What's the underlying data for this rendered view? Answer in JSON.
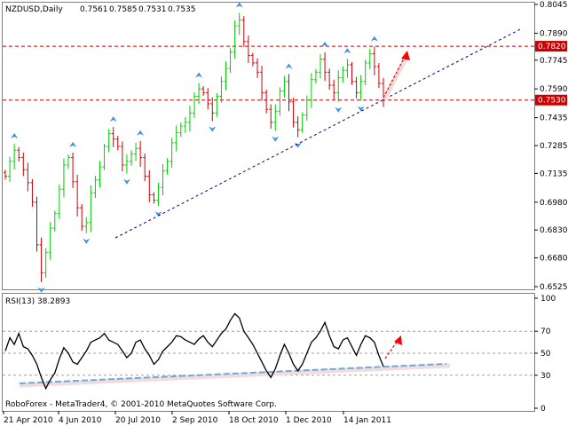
{
  "chart_data": [
    {
      "type": "candlestick",
      "symbol": "NZDUSD,Daily",
      "ohlc": [
        "0.7561",
        "0.7585",
        "0.7531",
        "0.7535"
      ],
      "y_ticks": [
        "0.8045",
        "0.7890",
        "0.7745",
        "0.7590",
        "0.7435",
        "0.7285",
        "0.7135",
        "0.6980",
        "0.6830",
        "0.6680",
        "0.6525"
      ],
      "ylim": [
        0.6525,
        0.8045
      ],
      "resistance_label": "0.7820",
      "resistance_value": 0.782,
      "support_label": "0.7530",
      "support_value": 0.753,
      "colors": {
        "bull": "#00cc00",
        "bear": "#cc0000",
        "level": "#cc0000",
        "trend": "#00008b",
        "fractal": "#3d8fe0",
        "forecast": "#ff0000"
      },
      "close_path": [
        0.712,
        0.72,
        0.726,
        0.722,
        0.7155,
        0.7085,
        0.698,
        0.675,
        0.66,
        0.671,
        0.684,
        0.692,
        0.705,
        0.718,
        0.722,
        0.709,
        0.695,
        0.685,
        0.687,
        0.703,
        0.71,
        0.717,
        0.728,
        0.735,
        0.732,
        0.728,
        0.718,
        0.72,
        0.724,
        0.727,
        0.722,
        0.712,
        0.702,
        0.699,
        0.706,
        0.715,
        0.72,
        0.73,
        0.7355,
        0.739,
        0.741,
        0.746,
        0.755,
        0.759,
        0.757,
        0.751,
        0.746,
        0.755,
        0.763,
        0.77,
        0.779,
        0.793,
        0.796,
        0.7845,
        0.777,
        0.773,
        0.768,
        0.757,
        0.748,
        0.741,
        0.747,
        0.758,
        0.763,
        0.752,
        0.741,
        0.737,
        0.745,
        0.753,
        0.764,
        0.768,
        0.775,
        0.768,
        0.761,
        0.757,
        0.765,
        0.769,
        0.772,
        0.763,
        0.757,
        0.763,
        0.773,
        0.778,
        0.771,
        0.762,
        0.753
      ]
    },
    {
      "type": "line",
      "indicator_label": "RSI(13) 38.2893",
      "y_ticks": [
        "100",
        "70",
        "50",
        "30",
        "0"
      ],
      "ylim": [
        0,
        100
      ],
      "levels": [
        70,
        50,
        30
      ],
      "values": [
        52,
        64,
        58,
        68,
        56,
        54,
        48,
        40,
        28,
        18,
        26,
        32,
        45,
        55,
        50,
        42,
        40,
        46,
        52,
        60,
        62,
        64,
        68,
        62,
        60,
        58,
        52,
        46,
        50,
        60,
        62,
        54,
        48,
        40,
        44,
        52,
        56,
        60,
        66,
        65,
        62,
        60,
        58,
        63,
        66,
        60,
        56,
        62,
        68,
        72,
        80,
        86,
        82,
        70,
        64,
        58,
        50,
        42,
        34,
        28,
        36,
        48,
        58,
        50,
        40,
        34,
        40,
        50,
        60,
        64,
        70,
        78,
        66,
        56,
        54,
        62,
        64,
        56,
        48,
        58,
        66,
        64,
        60,
        48,
        38
      ]
    }
  ],
  "x_axis_labels": [
    "21 Apr 2010",
    "4 Jun 2010",
    "20 Jul 2010",
    "2 Sep 2010",
    "18 Oct 2010",
    "1 Dec 2010",
    "14 Jan 2011"
  ],
  "footer": "RoboForex - MetaTrader4, © 2001-2010 MetaQuotes Software Corp."
}
